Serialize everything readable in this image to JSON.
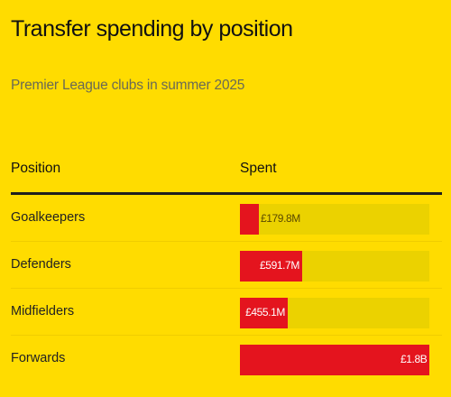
{
  "title": "Transfer spending by position",
  "subtitle": "Premier League clubs in summer 2025",
  "columns": {
    "position": "Position",
    "spent": "Spent"
  },
  "colors": {
    "background": "#FFDC00",
    "bar": "#E4141E",
    "track": "#EBD200",
    "rule": "#1e1e1e"
  },
  "chart_data": {
    "type": "bar",
    "orientation": "horizontal",
    "unit": "GBP",
    "categories": [
      "Goalkeepers",
      "Defenders",
      "Midfielders",
      "Forwards"
    ],
    "values": [
      179.8,
      591.7,
      455.1,
      1800
    ],
    "value_labels": [
      "£179.8M",
      "£591.7M",
      "£455.1M",
      "£1.8B"
    ],
    "xlim": [
      0,
      1800
    ],
    "value_units": "millions",
    "title": "Transfer spending by position",
    "subtitle": "Premier League clubs in summer 2025",
    "grid": false,
    "legend": "none"
  }
}
